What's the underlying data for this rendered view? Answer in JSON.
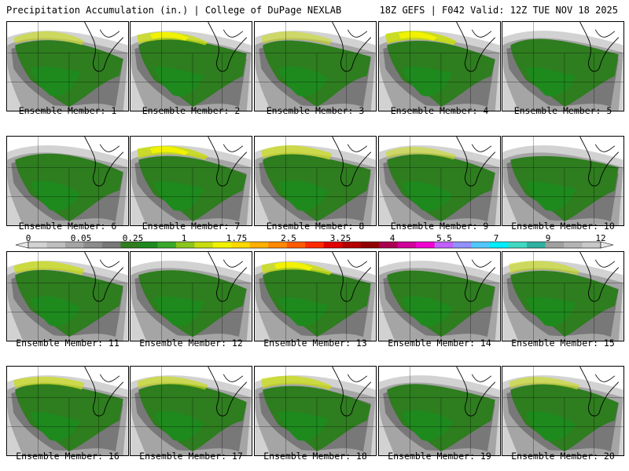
{
  "header": {
    "title_left": "Precipitation Accumulation (in.) | College of DuPage NEXLAB",
    "title_right": "18Z GEFS | F042 Valid: 12Z TUE NOV 18 2025"
  },
  "panels": [
    {
      "label": "Ensemble Member: 1",
      "intensity": 0.6
    },
    {
      "label": "Ensemble Member: 2",
      "intensity": 0.8
    },
    {
      "label": "Ensemble Member: 3",
      "intensity": 0.55
    },
    {
      "label": "Ensemble Member: 4",
      "intensity": 0.9
    },
    {
      "label": "Ensemble Member: 5",
      "intensity": 0.5
    },
    {
      "label": "Ensemble Member: 6",
      "intensity": 0.3
    },
    {
      "label": "Ensemble Member: 7",
      "intensity": 0.85
    },
    {
      "label": "Ensemble Member: 8",
      "intensity": 0.7
    },
    {
      "label": "Ensemble Member: 9",
      "intensity": 0.55
    },
    {
      "label": "Ensemble Member: 10",
      "intensity": 0.35
    },
    {
      "label": "Ensemble Member: 11",
      "intensity": 0.75
    },
    {
      "label": "Ensemble Member: 12",
      "intensity": 0.4
    },
    {
      "label": "Ensemble Member: 13",
      "intensity": 0.8
    },
    {
      "label": "Ensemble Member: 14",
      "intensity": 0.3
    },
    {
      "label": "Ensemble Member: 15",
      "intensity": 0.6
    },
    {
      "label": "Ensemble Member: 16",
      "intensity": 0.7
    },
    {
      "label": "Ensemble Member: 17",
      "intensity": 0.65
    },
    {
      "label": "Ensemble Member: 18",
      "intensity": 0.75
    },
    {
      "label": "Ensemble Member: 19",
      "intensity": 0.45
    },
    {
      "label": "Ensemble Member: 20",
      "intensity": 0.6
    }
  ],
  "colorbar": {
    "ticks": [
      "0",
      "0.05",
      "0.25",
      "1",
      "1.75",
      "2.5",
      "3.25",
      "4",
      "5.5",
      "7",
      "9",
      "12"
    ],
    "colors": [
      "#d2d2d2",
      "#bebebe",
      "#a5a5a5",
      "#8c8c8c",
      "#787878",
      "#2e7d1f",
      "#1e8a1e",
      "#3aa82a",
      "#8bc41c",
      "#c8dc10",
      "#f2f200",
      "#ffd800",
      "#ffb000",
      "#ff8800",
      "#ff5a00",
      "#ff2a00",
      "#e00000",
      "#b40000",
      "#900000",
      "#aa0050",
      "#d0009a",
      "#f000d0",
      "#c060ff",
      "#9090ff",
      "#50c8ff",
      "#00ecff",
      "#40d8c0",
      "#30b0a0",
      "#a0a0a0",
      "#b4b4b4",
      "#c8c8c8"
    ]
  }
}
